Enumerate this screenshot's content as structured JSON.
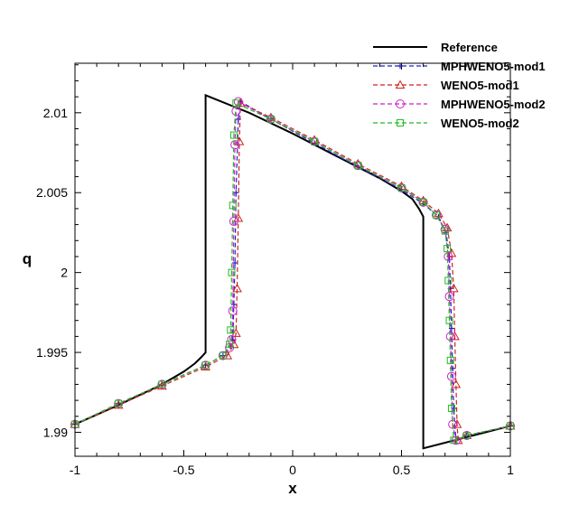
{
  "chart_data": {
    "type": "line",
    "xlabel": "x",
    "ylabel": "q",
    "xlim": [
      -1,
      1
    ],
    "ylim": [
      1.9885,
      2.0131
    ],
    "x_ticks": [
      -1,
      -0.5,
      0,
      0.5,
      1
    ],
    "x_tick_labels": [
      "-1",
      "-0.5",
      "0",
      "0.5",
      "1"
    ],
    "y_ticks": [
      1.99,
      1.995,
      2.0,
      2.005,
      2.01
    ],
    "y_tick_labels": [
      "1.99",
      "1.995",
      "2",
      "2.005",
      "2.01"
    ],
    "grid": false,
    "legend_position": "top-right",
    "series": [
      {
        "name": "Reference",
        "color": "#000000",
        "line_style": "solid",
        "marker": "none",
        "x": [
          -1.0,
          -0.8,
          -0.6,
          -0.5,
          -0.45,
          -0.42,
          -0.4,
          -0.4,
          -0.2,
          0.0,
          0.2,
          0.4,
          0.5,
          0.55,
          0.58,
          0.6,
          0.6,
          0.8,
          1.0
        ],
        "y": [
          1.9905,
          1.9917,
          1.993,
          1.9938,
          1.9943,
          1.9947,
          1.995,
          2.0111,
          2.01,
          2.0087,
          2.0073,
          2.0059,
          2.0051,
          2.0046,
          2.004,
          2.0035,
          1.989,
          1.9897,
          1.9904
        ]
      },
      {
        "name": "MPHWENO5-mod1",
        "color": "#2222cc",
        "line_style": "dashed",
        "marker": "plus",
        "x": [
          -1.0,
          -0.8,
          -0.6,
          -0.4,
          -0.32,
          -0.285,
          -0.275,
          -0.27,
          -0.265,
          -0.26,
          -0.25,
          -0.24,
          -0.1,
          0.1,
          0.3,
          0.5,
          0.6,
          0.67,
          0.705,
          0.72,
          0.725,
          0.73,
          0.735,
          0.74,
          0.75,
          0.8,
          1.0
        ],
        "y": [
          1.9905,
          1.9918,
          1.993,
          1.9942,
          1.9948,
          1.9954,
          1.9958,
          1.998,
          2.0006,
          2.005,
          2.0096,
          2.0107,
          2.0096,
          2.0081,
          2.0066,
          2.0052,
          2.0043,
          2.0035,
          2.0025,
          2.001,
          1.999,
          1.9965,
          1.994,
          1.9915,
          1.9895,
          1.9898,
          1.9904
        ]
      },
      {
        "name": "WENO5-mod1",
        "color": "#cc2222",
        "line_style": "dashed",
        "marker": "triangle",
        "x": [
          -1.0,
          -0.8,
          -0.6,
          -0.4,
          -0.3,
          -0.27,
          -0.26,
          -0.255,
          -0.25,
          -0.245,
          -0.24,
          -0.1,
          0.1,
          0.3,
          0.5,
          0.6,
          0.67,
          0.71,
          0.73,
          0.74,
          0.745,
          0.75,
          0.755,
          0.76,
          0.8,
          1.0
        ],
        "y": [
          1.9905,
          1.9917,
          1.9929,
          1.9941,
          1.9948,
          1.9955,
          1.9962,
          1.999,
          2.0034,
          2.0082,
          2.0106,
          2.0097,
          2.0083,
          2.0068,
          2.0054,
          2.0045,
          2.0037,
          2.0028,
          2.0012,
          1.999,
          1.996,
          1.993,
          1.9905,
          1.9895,
          1.9898,
          1.9904
        ]
      },
      {
        "name": "MPHWENO5-mod2",
        "color": "#cc22cc",
        "line_style": "dashed",
        "marker": "circle",
        "x": [
          -1.0,
          -0.8,
          -0.6,
          -0.4,
          -0.32,
          -0.29,
          -0.28,
          -0.275,
          -0.27,
          -0.265,
          -0.26,
          -0.25,
          -0.1,
          0.1,
          0.3,
          0.5,
          0.6,
          0.66,
          0.7,
          0.715,
          0.72,
          0.725,
          0.73,
          0.735,
          0.75,
          0.8,
          1.0
        ],
        "y": [
          1.9905,
          1.9918,
          1.993,
          1.9942,
          1.9948,
          1.9953,
          1.9958,
          1.9976,
          2.0032,
          2.008,
          2.0101,
          2.0107,
          2.0096,
          2.0082,
          2.0067,
          2.0053,
          2.0044,
          2.0036,
          2.0027,
          2.001,
          1.9985,
          1.996,
          1.9935,
          1.9905,
          1.9895,
          1.9898,
          1.9904
        ]
      },
      {
        "name": "WENO5-mod2",
        "color": "#22bb22",
        "line_style": "dashed",
        "marker": "square",
        "x": [
          -1.0,
          -0.8,
          -0.6,
          -0.4,
          -0.32,
          -0.29,
          -0.285,
          -0.28,
          -0.275,
          -0.27,
          -0.26,
          -0.1,
          0.1,
          0.3,
          0.5,
          0.6,
          0.66,
          0.7,
          0.71,
          0.715,
          0.72,
          0.725,
          0.73,
          0.74,
          0.8,
          1.0
        ],
        "y": [
          1.9905,
          1.9918,
          1.993,
          1.9942,
          1.9948,
          1.9955,
          1.9964,
          2.0,
          2.0042,
          2.0086,
          2.0106,
          2.0096,
          2.0082,
          2.0067,
          2.0053,
          2.0044,
          2.0036,
          2.0026,
          2.0015,
          1.9995,
          1.997,
          1.9945,
          1.9915,
          1.9895,
          1.9898,
          1.9904
        ]
      }
    ]
  }
}
